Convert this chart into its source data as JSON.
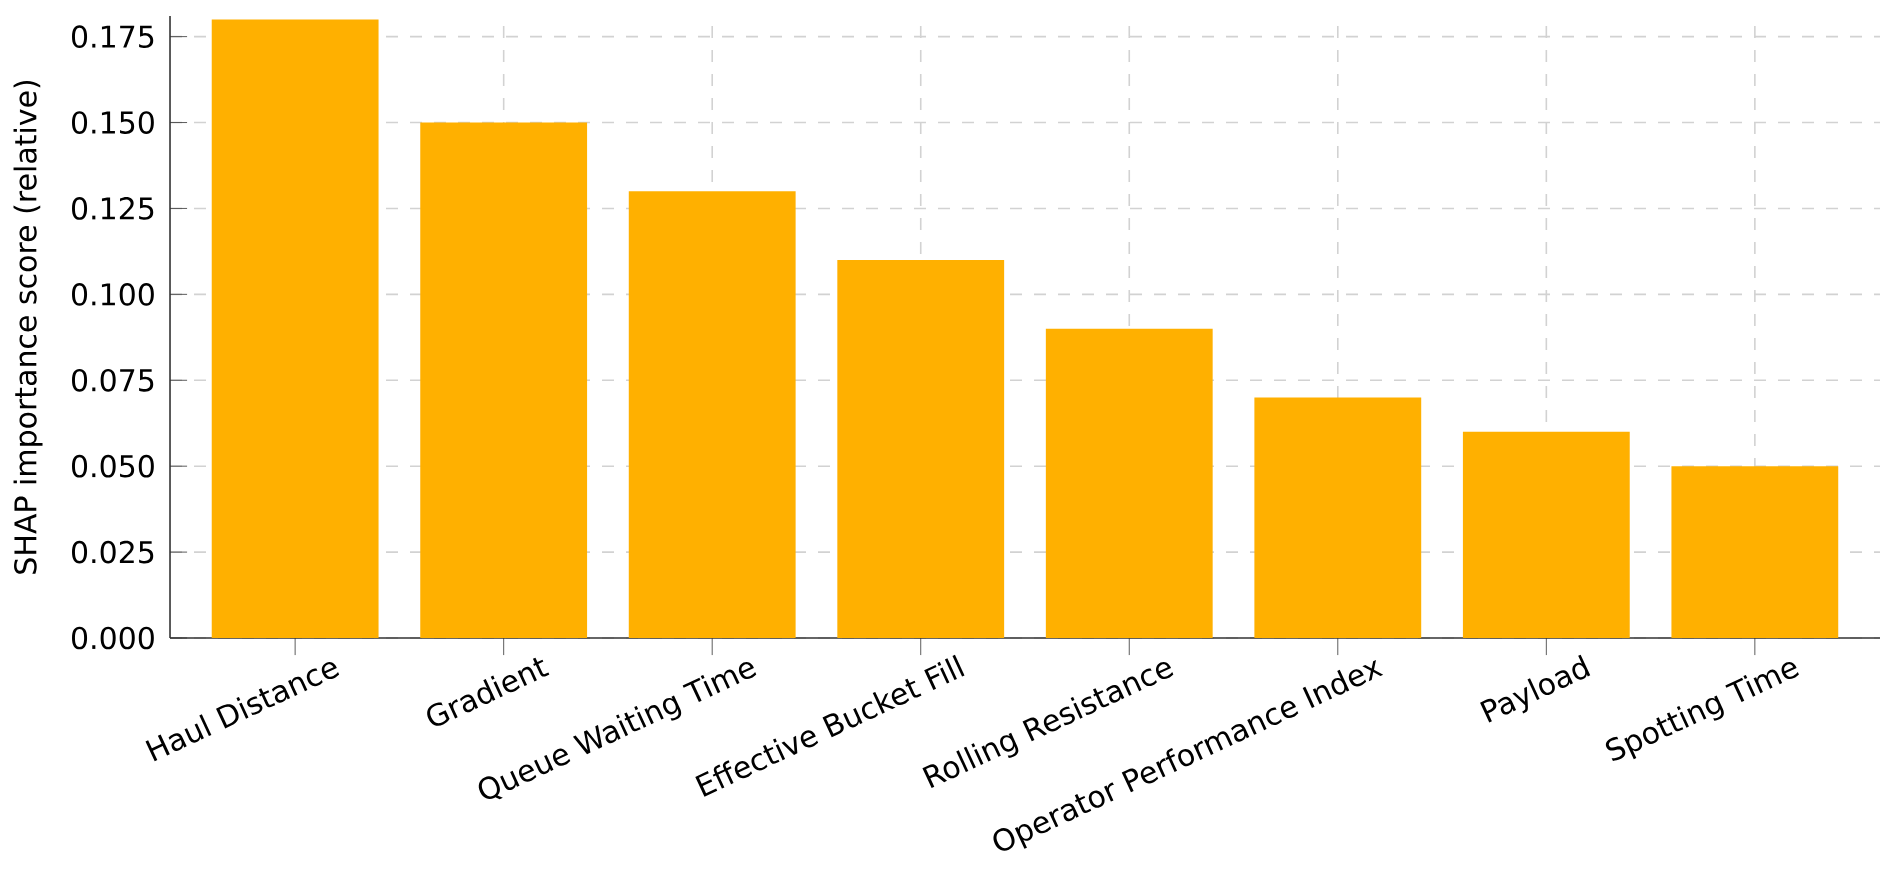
{
  "chart_data": {
    "type": "bar",
    "ylabel": "SHAP importance score (relative)",
    "categories": [
      "Haul Distance",
      "Gradient",
      "Queue Waiting Time",
      "Effective Bucket Fill",
      "Rolling Resistance",
      "Operator Performance Index",
      "Payload",
      "Spotting Time"
    ],
    "values": [
      0.18,
      0.15,
      0.13,
      0.11,
      0.09,
      0.07,
      0.06,
      0.05
    ],
    "color": "#ffb000",
    "ylim": [
      0,
      0.181
    ],
    "yticks": [
      {
        "value": 0,
        "label": "0.000"
      },
      {
        "value": 0.025,
        "label": "0.025"
      },
      {
        "value": 0.05,
        "label": "0.050"
      },
      {
        "value": 0.075,
        "label": "0.075"
      },
      {
        "value": 0.1,
        "label": "0.100"
      },
      {
        "value": 0.125,
        "label": "0.125"
      },
      {
        "value": 0.15,
        "label": "0.150"
      },
      {
        "value": 0.175,
        "label": "0.175"
      }
    ],
    "grid": true
  }
}
